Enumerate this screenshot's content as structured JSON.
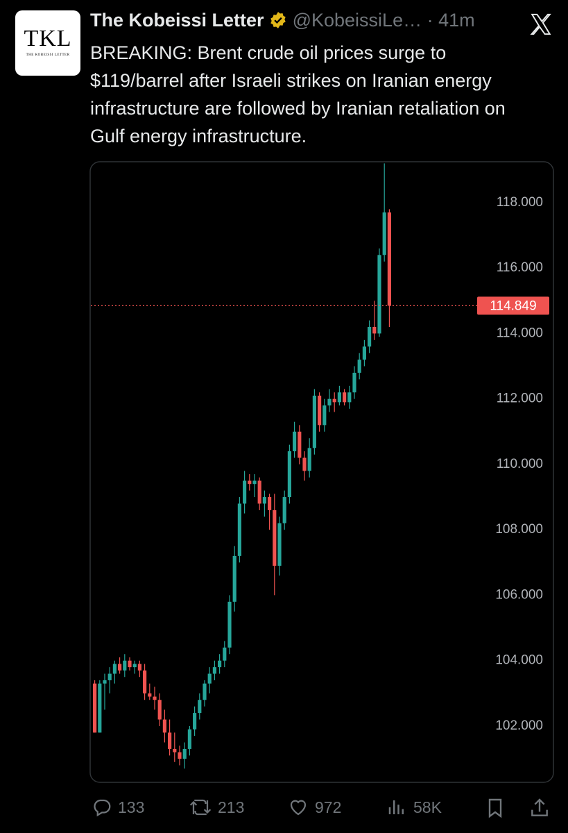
{
  "tweet": {
    "avatar_text": "TKL",
    "avatar_subtitle": "THE KOBEISSI LETTER",
    "name": "The Kobeissi Letter",
    "handle": "@KobeissiLe…",
    "time": "· 41m",
    "text": "BREAKING: Brent crude oil prices surge to $119/barrel after Israeli strikes on Iranian energy infrastructure are followed by Iranian retaliation on Gulf energy infrastructure.",
    "replies": "133",
    "reposts": "213",
    "likes": "972",
    "views": "58K"
  },
  "chart_data": {
    "type": "candlestick",
    "colors": {
      "up": "#26a69a",
      "down": "#ef5350"
    },
    "last_price_color": "#ef5350",
    "ylim": [
      100.28,
      119.25
    ],
    "yticks": [
      {
        "value": 102,
        "label": "102.000"
      },
      {
        "value": 104,
        "label": "104.000"
      },
      {
        "value": 106,
        "label": "106.000"
      },
      {
        "value": 108,
        "label": "108.000"
      },
      {
        "value": 110,
        "label": "110.000"
      },
      {
        "value": 112,
        "label": "112.000"
      },
      {
        "value": 114,
        "label": "114.000"
      },
      {
        "value": 116,
        "label": "116.000"
      },
      {
        "value": 118,
        "label": "118.000"
      }
    ],
    "last_price": 114.849,
    "open": [
      103.3,
      101.8,
      103.3,
      103.4,
      103.6,
      103.9,
      103.7,
      104.0,
      103.8,
      103.9,
      103.7,
      103.0,
      102.9,
      102.8,
      102.2,
      101.8,
      101.3,
      101.2,
      101.0,
      101.3,
      101.9,
      102.4,
      102.8,
      103.3,
      103.6,
      103.8,
      104.0,
      104.4,
      105.8,
      107.2,
      108.8,
      109.5,
      109.4,
      109.5,
      108.8,
      109.0,
      108.6,
      106.9,
      108.2,
      109.0,
      110.4,
      111.0,
      110.2,
      109.8,
      110.5,
      112.1,
      111.2,
      111.8,
      112.0,
      111.9,
      112.2,
      111.9,
      112.2,
      112.8,
      113.2,
      113.6,
      114.2,
      114.0,
      116.4,
      117.7
    ],
    "high": [
      103.4,
      103.4,
      103.6,
      103.8,
      104.0,
      104.1,
      104.2,
      104.1,
      104.0,
      104.0,
      103.9,
      103.3,
      103.2,
      103.0,
      102.5,
      102.2,
      101.8,
      101.4,
      101.5,
      102.0,
      102.6,
      103.0,
      103.4,
      103.8,
      104.0,
      104.2,
      104.6,
      106.0,
      107.5,
      109.0,
      109.8,
      109.7,
      109.7,
      109.6,
      109.2,
      109.1,
      109.1,
      108.4,
      109.2,
      110.6,
      111.3,
      111.2,
      110.4,
      110.8,
      112.3,
      112.2,
      112.0,
      112.3,
      112.2,
      112.4,
      112.3,
      112.4,
      113.0,
      113.4,
      113.8,
      114.4,
      115.0,
      116.6,
      119.2,
      117.8
    ],
    "low": [
      101.8,
      101.8,
      102.5,
      103.0,
      103.3,
      103.6,
      103.5,
      103.7,
      103.6,
      103.5,
      102.8,
      102.8,
      102.5,
      102.0,
      101.5,
      101.1,
      100.9,
      100.8,
      100.7,
      101.1,
      101.7,
      102.2,
      102.6,
      103.0,
      103.4,
      103.6,
      103.8,
      104.2,
      105.5,
      107.0,
      108.5,
      109.2,
      109.0,
      108.6,
      108.4,
      108.0,
      106.0,
      106.6,
      108.0,
      108.8,
      110.2,
      110.0,
      109.5,
      109.6,
      110.3,
      111.0,
      111.0,
      111.6,
      111.6,
      111.8,
      111.8,
      111.7,
      112.0,
      112.6,
      113.0,
      113.4,
      113.8,
      113.9,
      116.2,
      114.2
    ],
    "close": [
      101.8,
      103.3,
      103.4,
      103.6,
      103.9,
      103.7,
      104.0,
      103.8,
      103.9,
      103.7,
      103.0,
      102.9,
      102.8,
      102.2,
      101.8,
      101.3,
      101.2,
      101.0,
      101.3,
      101.9,
      102.4,
      102.8,
      103.3,
      103.6,
      103.8,
      104.0,
      104.4,
      105.8,
      107.2,
      108.8,
      109.5,
      109.4,
      109.5,
      108.8,
      109.0,
      108.6,
      106.9,
      108.2,
      109.0,
      110.4,
      111.0,
      110.2,
      109.8,
      110.5,
      112.1,
      111.2,
      111.8,
      112.0,
      111.9,
      112.2,
      111.9,
      112.2,
      112.8,
      113.2,
      113.6,
      114.2,
      114.0,
      116.4,
      117.7,
      114.849
    ]
  }
}
